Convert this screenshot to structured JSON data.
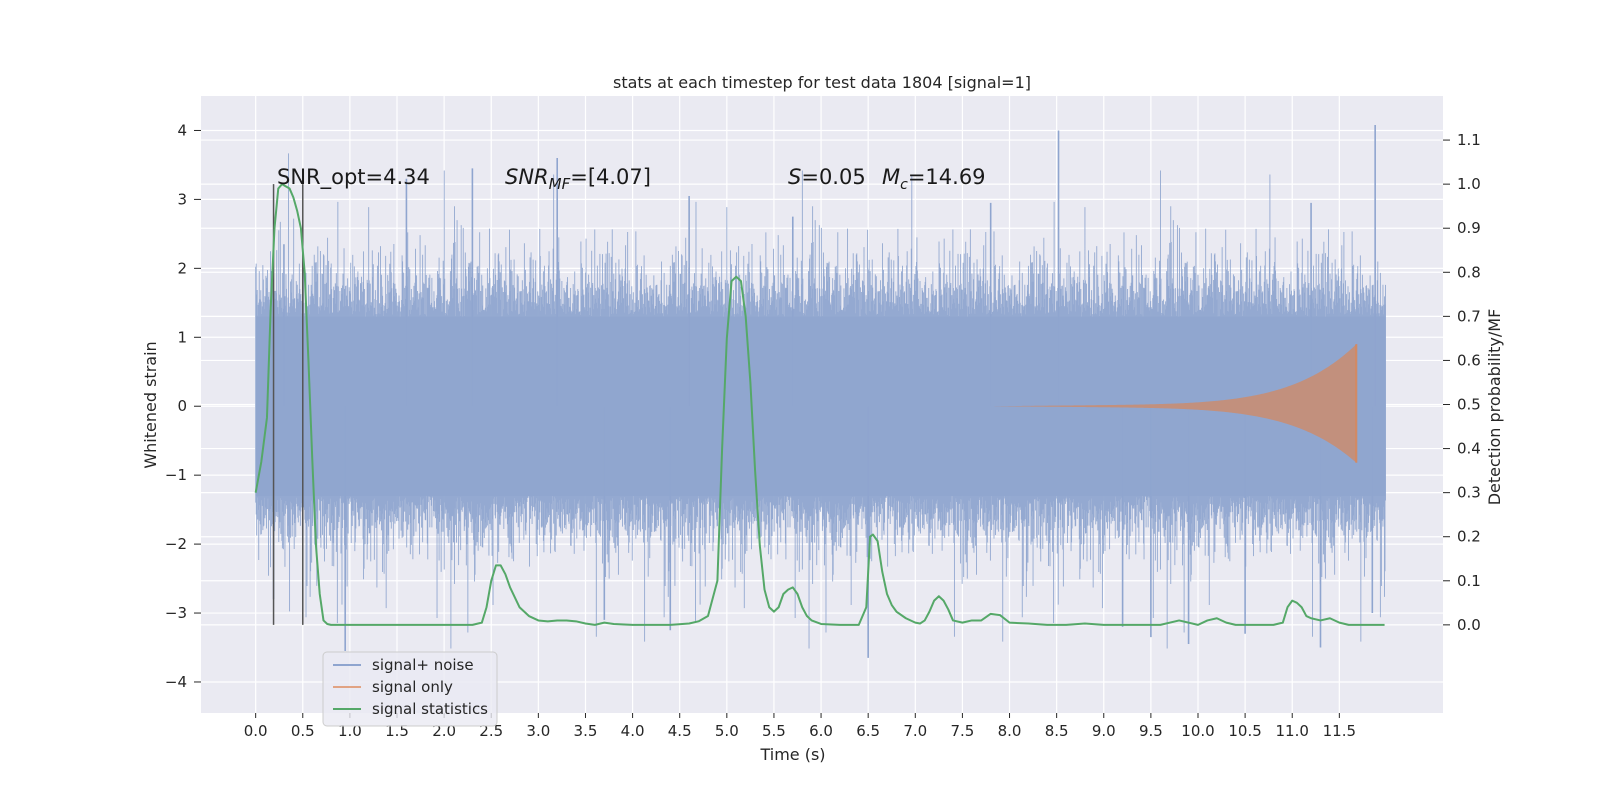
{
  "chart_data": {
    "type": "line",
    "title": "stats at each timestep for test data 1804 [signal=1]",
    "xlabel": "Time (s)",
    "ylabel_left": "Whitened strain",
    "ylabel_right": "Detection probability/MF",
    "xlim": [
      -0.58,
      12.6
    ],
    "ylim_left": [
      -4.45,
      4.5
    ],
    "ylim_right": [
      -0.2,
      1.2
    ],
    "x_ticks": [
      "0.0",
      "0.5",
      "1.0",
      "1.5",
      "2.0",
      "2.5",
      "3.0",
      "3.5",
      "4.0",
      "4.5",
      "5.0",
      "5.5",
      "6.0",
      "6.5",
      "7.0",
      "7.5",
      "8.0",
      "8.5",
      "9.0",
      "9.5",
      "10.0",
      "10.5",
      "11.0",
      "11.5"
    ],
    "y_ticks_left": [
      -4,
      -3,
      -2,
      -1,
      0,
      1,
      2,
      3,
      4
    ],
    "y_ticks_left_labels": [
      "−4",
      "−3",
      "−2",
      "−1",
      "0",
      "1",
      "2",
      "3",
      "4"
    ],
    "y_ticks_right": [
      0.0,
      0.1,
      0.2,
      0.3,
      0.4,
      0.5,
      0.6,
      0.7,
      0.8,
      0.9,
      1.0,
      1.1
    ],
    "y_ticks_right_labels": [
      "0.0",
      "0.1",
      "0.2",
      "0.3",
      "0.4",
      "0.5",
      "0.6",
      "0.7",
      "0.8",
      "0.9",
      "1.0",
      "1.1"
    ],
    "grid": true,
    "legend_placement": "lower-left",
    "legend": [
      {
        "label": "signal+ noise",
        "color": "#8fa5cf"
      },
      {
        "label": "signal only",
        "color": "#dd8452"
      },
      {
        "label": "signal statistics",
        "color": "#55a868"
      }
    ],
    "annotations": {
      "snr_opt": "SNR_opt=4.34",
      "snr_mf_main": "SNR",
      "snr_mf_sub": "MF",
      "snr_mf_value": "=[4.07]",
      "s_label": "S",
      "s_value": "=0.05",
      "mc_label": "M",
      "mc_sub": "c",
      "mc_value": "=14.69"
    },
    "vertical_markers_x": [
      0.19,
      0.5
    ],
    "series": [
      {
        "name": "signal+ noise",
        "axis": "left",
        "color": "#8fa5cf",
        "t_range": [
          0.0,
          11.99
        ],
        "band_core": 1.3,
        "peaks": [
          [
            0.19,
            -2.8
          ],
          [
            0.3,
            2.35
          ],
          [
            0.95,
            -3.55
          ],
          [
            1.6,
            3.3
          ],
          [
            2.3,
            3.45
          ],
          [
            3.2,
            3.6
          ],
          [
            3.7,
            -3.1
          ],
          [
            4.4,
            -3.25
          ],
          [
            4.6,
            3.05
          ],
          [
            5.7,
            2.75
          ],
          [
            6.5,
            -3.65
          ],
          [
            7.8,
            2.95
          ],
          [
            8.52,
            4.0
          ],
          [
            9.2,
            -3.2
          ],
          [
            9.5,
            -3.35
          ],
          [
            9.9,
            -3.45
          ],
          [
            10.5,
            -3.3
          ],
          [
            11.2,
            2.95
          ],
          [
            11.3,
            -3.5
          ],
          [
            11.88,
            4.08
          ],
          [
            11.85,
            -3.0
          ]
        ]
      },
      {
        "name": "signal only",
        "axis": "left",
        "color": "#dd8452",
        "t_start": 7.8,
        "t_end": 11.68,
        "end_amplitude_top": 0.9,
        "end_amplitude_bottom": -0.82
      },
      {
        "name": "signal statistics",
        "axis": "right",
        "color": "#55a868",
        "x": [
          0.0,
          0.06,
          0.12,
          0.16,
          0.2,
          0.24,
          0.28,
          0.32,
          0.36,
          0.4,
          0.44,
          0.48,
          0.52,
          0.56,
          0.6,
          0.64,
          0.68,
          0.72,
          0.76,
          0.8,
          0.9,
          1.0,
          1.2,
          1.5,
          2.0,
          2.3,
          2.4,
          2.45,
          2.5,
          2.55,
          2.6,
          2.65,
          2.7,
          2.8,
          2.9,
          3.0,
          3.1,
          3.2,
          3.3,
          3.4,
          3.5,
          3.6,
          3.7,
          3.8,
          4.0,
          4.2,
          4.4,
          4.6,
          4.7,
          4.8,
          4.9,
          4.95,
          5.0,
          5.05,
          5.1,
          5.15,
          5.2,
          5.25,
          5.3,
          5.35,
          5.4,
          5.45,
          5.5,
          5.55,
          5.6,
          5.65,
          5.7,
          5.75,
          5.8,
          5.85,
          5.9,
          6.0,
          6.2,
          6.4,
          6.48,
          6.52,
          6.55,
          6.6,
          6.65,
          6.7,
          6.75,
          6.8,
          6.9,
          7.0,
          7.05,
          7.1,
          7.15,
          7.2,
          7.25,
          7.3,
          7.35,
          7.4,
          7.5,
          7.6,
          7.7,
          7.8,
          7.9,
          8.0,
          8.2,
          8.4,
          8.6,
          8.8,
          9.0,
          9.2,
          9.4,
          9.6,
          9.8,
          10.0,
          10.1,
          10.2,
          10.3,
          10.4,
          10.6,
          10.8,
          10.9,
          10.95,
          11.0,
          11.05,
          11.1,
          11.15,
          11.2,
          11.3,
          11.4,
          11.5,
          11.6,
          11.7,
          11.8,
          11.9,
          11.98
        ],
        "values": [
          0.3,
          0.37,
          0.47,
          0.72,
          0.9,
          0.99,
          1.0,
          0.995,
          0.99,
          0.97,
          0.94,
          0.9,
          0.8,
          0.6,
          0.38,
          0.18,
          0.07,
          0.01,
          0.002,
          0.0,
          0.0,
          0.0,
          0.0,
          0.0,
          0.0,
          0.0,
          0.005,
          0.04,
          0.1,
          0.135,
          0.135,
          0.115,
          0.085,
          0.04,
          0.02,
          0.01,
          0.008,
          0.01,
          0.01,
          0.008,
          0.003,
          0.0,
          0.005,
          0.002,
          0.0,
          0.0,
          0.0,
          0.003,
          0.008,
          0.02,
          0.1,
          0.4,
          0.65,
          0.78,
          0.79,
          0.78,
          0.7,
          0.55,
          0.35,
          0.18,
          0.08,
          0.04,
          0.03,
          0.04,
          0.07,
          0.08,
          0.085,
          0.07,
          0.04,
          0.02,
          0.01,
          0.002,
          0.0,
          0.0,
          0.04,
          0.2,
          0.205,
          0.19,
          0.12,
          0.07,
          0.045,
          0.03,
          0.015,
          0.005,
          0.003,
          0.01,
          0.03,
          0.055,
          0.065,
          0.055,
          0.035,
          0.01,
          0.005,
          0.01,
          0.01,
          0.025,
          0.022,
          0.005,
          0.003,
          0.0,
          0.0,
          0.003,
          0.0,
          0.0,
          0.0,
          0.0,
          0.01,
          0.0,
          0.01,
          0.015,
          0.005,
          0.0,
          0.0,
          0.0,
          0.005,
          0.04,
          0.055,
          0.05,
          0.04,
          0.02,
          0.015,
          0.01,
          0.015,
          0.005,
          0.0,
          0.0,
          0.0,
          0.0,
          0.0
        ]
      }
    ]
  }
}
